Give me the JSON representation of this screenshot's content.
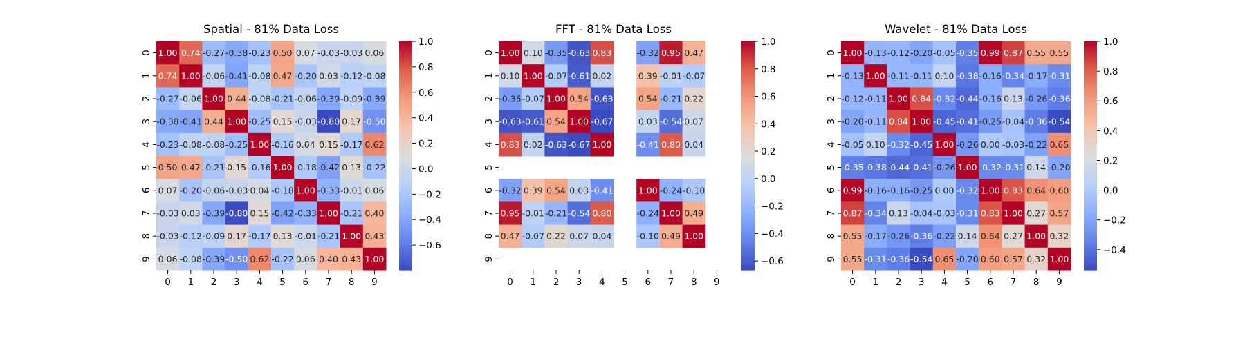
{
  "chart_data": [
    {
      "type": "heatmap",
      "title": "Spatial - 81% Data Loss",
      "x_ticks": [
        "0",
        "1",
        "2",
        "3",
        "4",
        "5",
        "6",
        "7",
        "8",
        "9"
      ],
      "y_ticks": [
        "0",
        "1",
        "2",
        "3",
        "4",
        "5",
        "6",
        "7",
        "8",
        "9"
      ],
      "vmin": -0.8,
      "vmax": 1.0,
      "colorbar_ticks": [
        "1.0",
        "0.8",
        "0.6",
        "0.4",
        "0.2",
        "0.0",
        "−0.2",
        "−0.4",
        "−0.6"
      ],
      "colorbar_tick_values": [
        1.0,
        0.8,
        0.6,
        0.4,
        0.2,
        0.0,
        -0.2,
        -0.4,
        -0.6
      ],
      "colormap": "coolwarm",
      "matrix": [
        [
          1.0,
          0.74,
          -0.27,
          -0.38,
          -0.23,
          0.5,
          0.07,
          -0.03,
          -0.03,
          0.06
        ],
        [
          0.74,
          1.0,
          -0.06,
          -0.41,
          -0.08,
          0.47,
          -0.2,
          0.03,
          -0.12,
          -0.08
        ],
        [
          -0.27,
          -0.06,
          1.0,
          0.44,
          -0.08,
          -0.21,
          -0.06,
          -0.39,
          -0.09,
          -0.39
        ],
        [
          -0.38,
          -0.41,
          0.44,
          1.0,
          -0.25,
          0.15,
          -0.03,
          -0.8,
          0.17,
          -0.5
        ],
        [
          -0.23,
          -0.08,
          -0.08,
          -0.25,
          1.0,
          -0.16,
          0.04,
          0.15,
          -0.17,
          0.62
        ],
        [
          0.5,
          0.47,
          -0.21,
          0.15,
          -0.16,
          1.0,
          -0.18,
          -0.42,
          0.13,
          -0.22
        ],
        [
          0.07,
          -0.2,
          -0.06,
          -0.03,
          0.04,
          -0.18,
          1.0,
          -0.33,
          -0.01,
          0.06
        ],
        [
          -0.03,
          0.03,
          -0.39,
          -0.8,
          0.15,
          -0.42,
          -0.33,
          1.0,
          -0.21,
          0.4
        ],
        [
          -0.03,
          -0.12,
          -0.09,
          0.17,
          -0.17,
          0.13,
          -0.01,
          -0.21,
          1.0,
          0.43
        ],
        [
          0.06,
          -0.08,
          -0.39,
          -0.5,
          0.62,
          -0.22,
          0.06,
          0.4,
          0.43,
          1.0
        ]
      ]
    },
    {
      "type": "heatmap",
      "title": "FFT - 81% Data Loss",
      "x_ticks": [
        "0",
        "1",
        "2",
        "3",
        "4",
        "5",
        "6",
        "7",
        "8",
        "9"
      ],
      "y_ticks": [
        "0",
        "1",
        "2",
        "3",
        "4",
        "5",
        "6",
        "7",
        "8",
        "9"
      ],
      "vmin": -0.67,
      "vmax": 1.0,
      "colorbar_ticks": [
        "1.0",
        "0.8",
        "0.6",
        "0.4",
        "0.2",
        "0.0",
        "−0.2",
        "−0.4",
        "−0.6"
      ],
      "colorbar_tick_values": [
        1.0,
        0.8,
        0.6,
        0.4,
        0.2,
        0.0,
        -0.2,
        -0.4,
        -0.6
      ],
      "colormap": "coolwarm",
      "matrix": [
        [
          1.0,
          0.1,
          -0.35,
          -0.63,
          0.83,
          null,
          -0.32,
          0.95,
          0.47,
          null
        ],
        [
          0.1,
          1.0,
          -0.07,
          -0.61,
          0.02,
          null,
          0.39,
          -0.01,
          -0.07,
          null
        ],
        [
          -0.35,
          -0.07,
          1.0,
          0.54,
          -0.63,
          null,
          0.54,
          -0.21,
          0.22,
          null
        ],
        [
          -0.63,
          -0.61,
          0.54,
          1.0,
          -0.67,
          null,
          0.03,
          -0.54,
          0.07,
          null
        ],
        [
          0.83,
          0.02,
          -0.63,
          -0.67,
          1.0,
          null,
          -0.41,
          0.8,
          0.04,
          null
        ],
        [
          null,
          null,
          null,
          null,
          null,
          null,
          null,
          null,
          null,
          null
        ],
        [
          -0.32,
          0.39,
          0.54,
          0.03,
          -0.41,
          null,
          1.0,
          -0.24,
          -0.1,
          null
        ],
        [
          0.95,
          -0.01,
          -0.21,
          -0.54,
          0.8,
          null,
          -0.24,
          1.0,
          0.49,
          null
        ],
        [
          0.47,
          -0.07,
          0.22,
          0.07,
          0.04,
          null,
          -0.1,
          0.49,
          1.0,
          null
        ],
        [
          null,
          null,
          null,
          null,
          null,
          null,
          null,
          null,
          null,
          null
        ]
      ]
    },
    {
      "type": "heatmap",
      "title": "Wavelet - 81% Data Loss",
      "x_ticks": [
        "0",
        "1",
        "2",
        "3",
        "4",
        "5",
        "6",
        "7",
        "8",
        "9"
      ],
      "y_ticks": [
        "0",
        "1",
        "2",
        "3",
        "4",
        "5",
        "6",
        "7",
        "8",
        "9"
      ],
      "vmin": -0.54,
      "vmax": 1.0,
      "colorbar_ticks": [
        "1.0",
        "0.8",
        "0.6",
        "0.4",
        "0.2",
        "0.0",
        "−0.2",
        "−0.4"
      ],
      "colorbar_tick_values": [
        1.0,
        0.8,
        0.6,
        0.4,
        0.2,
        0.0,
        -0.2,
        -0.4
      ],
      "colormap": "coolwarm",
      "matrix": [
        [
          1.0,
          -0.13,
          -0.12,
          -0.2,
          -0.05,
          -0.35,
          0.99,
          0.87,
          0.55,
          0.55
        ],
        [
          -0.13,
          1.0,
          -0.11,
          -0.11,
          0.1,
          -0.38,
          -0.16,
          -0.34,
          -0.17,
          -0.31
        ],
        [
          -0.12,
          -0.11,
          1.0,
          0.84,
          -0.32,
          -0.44,
          -0.16,
          0.13,
          -0.26,
          -0.36
        ],
        [
          -0.2,
          -0.11,
          0.84,
          1.0,
          -0.45,
          -0.41,
          -0.25,
          -0.04,
          -0.36,
          -0.54
        ],
        [
          -0.05,
          0.1,
          -0.32,
          -0.45,
          1.0,
          -0.26,
          -0.0,
          -0.03,
          -0.22,
          0.65
        ],
        [
          -0.35,
          -0.38,
          -0.44,
          -0.41,
          -0.26,
          1.0,
          -0.32,
          -0.31,
          0.14,
          -0.2
        ],
        [
          0.99,
          -0.16,
          -0.16,
          -0.25,
          -0.0,
          -0.32,
          1.0,
          0.83,
          0.64,
          0.6
        ],
        [
          0.87,
          -0.34,
          0.13,
          -0.04,
          -0.03,
          -0.31,
          0.83,
          1.0,
          0.27,
          0.57
        ],
        [
          0.55,
          -0.17,
          -0.26,
          -0.36,
          -0.22,
          0.14,
          0.64,
          0.27,
          1.0,
          0.32
        ],
        [
          0.55,
          -0.31,
          -0.36,
          -0.54,
          0.65,
          -0.2,
          0.6,
          0.57,
          0.32,
          1.0
        ]
      ]
    }
  ]
}
